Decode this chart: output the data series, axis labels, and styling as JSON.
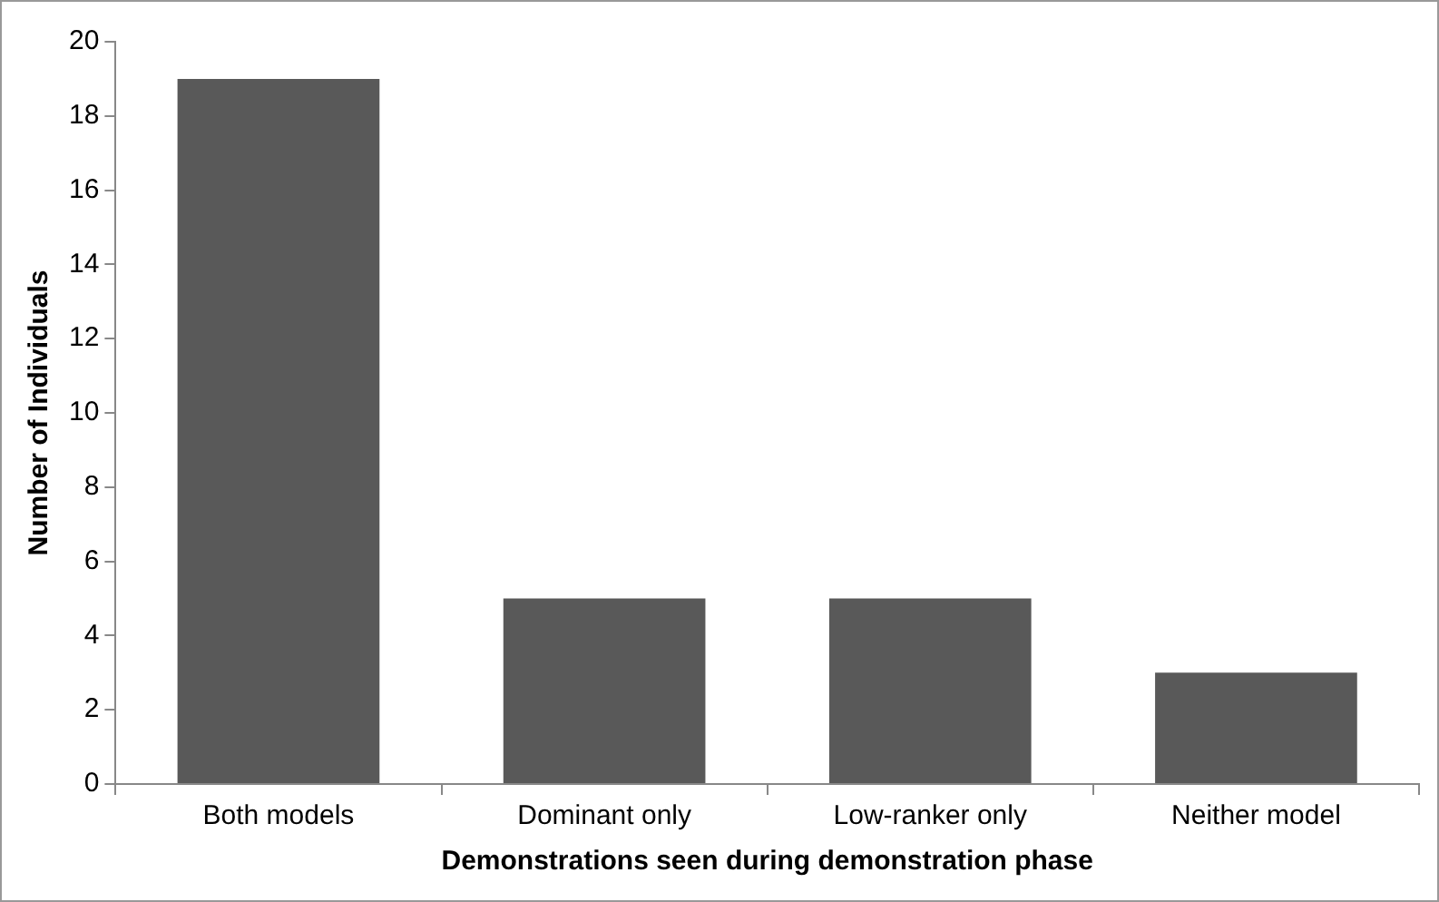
{
  "chart_data": {
    "type": "bar",
    "xlabel": "Demonstrations seen during demonstration phase",
    "ylabel": "Number of Individuals",
    "categories": [
      "Both models",
      "Dominant only",
      "Low-ranker only",
      "Neither model"
    ],
    "values": [
      19,
      5,
      5,
      3
    ],
    "color": "#595959",
    "ylim": [
      0,
      20
    ],
    "yticks": [
      0,
      2,
      4,
      6,
      8,
      10,
      12,
      14,
      16,
      18,
      20
    ],
    "grid": false,
    "legend": false
  }
}
